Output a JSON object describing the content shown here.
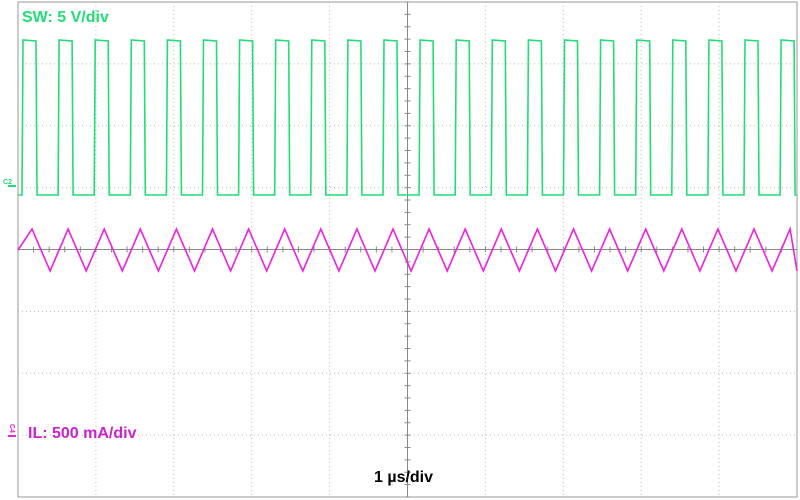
{
  "channels": [
    {
      "marker": "C2",
      "label": "SW: 5 V/div"
    },
    {
      "marker": "C4",
      "label": "IL: 500 mA/div"
    }
  ],
  "timebase": "1 µs/div"
}
